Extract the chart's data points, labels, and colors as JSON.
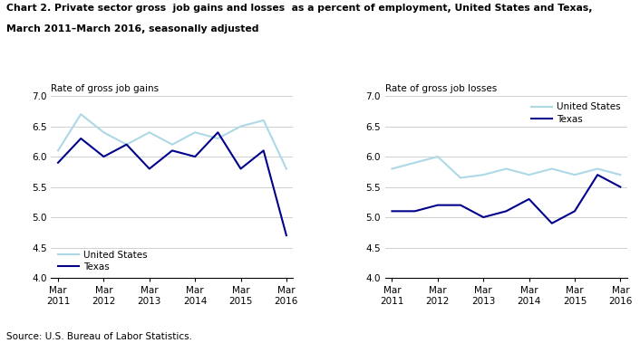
{
  "title_line1": "Chart 2. Private sector gross  job gains and losses  as a percent of employment, United States and Texas,",
  "title_line2": "March 2011–March 2016, seasonally adjusted",
  "left_ylabel": "Rate of gross job gains",
  "right_ylabel": "Rate of gross job losses",
  "source": "Source: U.S. Bureau of Labor Statistics.",
  "x_positions": [
    0,
    1,
    2,
    3,
    4,
    5,
    6,
    7,
    8,
    9,
    10
  ],
  "gains_us": [
    6.1,
    6.7,
    6.4,
    6.2,
    6.4,
    6.2,
    6.4,
    6.3,
    6.5,
    6.6,
    5.8
  ],
  "gains_tx": [
    5.9,
    6.3,
    6.0,
    6.2,
    5.8,
    6.1,
    6.0,
    6.4,
    5.8,
    6.1,
    4.7
  ],
  "losses_us": [
    5.8,
    5.9,
    6.0,
    5.65,
    5.7,
    5.8,
    5.7,
    5.8,
    5.7,
    5.8,
    5.7
  ],
  "losses_tx": [
    5.1,
    5.1,
    5.2,
    5.2,
    5.0,
    5.1,
    5.3,
    4.9,
    5.1,
    5.7,
    5.5
  ],
  "color_us": "#add8e6",
  "color_tx": "#00008B",
  "ylim": [
    4.0,
    7.0
  ],
  "yticks": [
    4.0,
    4.5,
    5.0,
    5.5,
    6.0,
    6.5,
    7.0
  ],
  "linewidth": 1.5,
  "x_tick_positions": [
    0,
    2,
    4,
    6,
    8,
    10
  ],
  "x_tick_labels": [
    "Mar\n2011",
    "Mar\n2012",
    "Mar\n2013",
    "Mar\n2014",
    "Mar\n2015",
    "Mar\n2016"
  ]
}
